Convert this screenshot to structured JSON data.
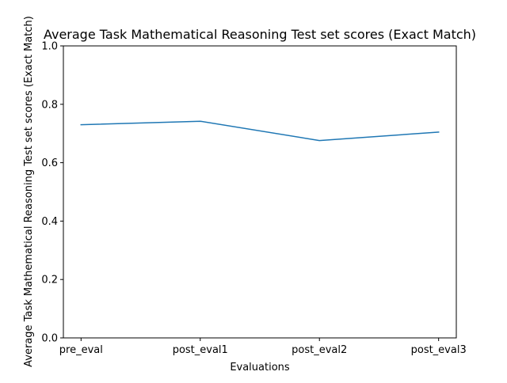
{
  "chart_data": {
    "type": "line",
    "title": "Average Task Mathematical Reasoning Test set scores (Exact Match)",
    "xlabel": "Evaluations",
    "ylabel": "Average Task Mathematical Reasoning Test set scores (Exact Match)",
    "categories": [
      "pre_eval",
      "post_eval1",
      "post_eval2",
      "post_eval3"
    ],
    "series": [
      {
        "values": [
          0.73,
          0.742,
          0.676,
          0.705
        ],
        "color": "#1f77b4"
      }
    ],
    "ylim": [
      0.0,
      1.0
    ],
    "yticks": [
      "0.0",
      "0.2",
      "0.4",
      "0.6",
      "0.8",
      "1.0"
    ],
    "grid": false,
    "legend": "none"
  }
}
